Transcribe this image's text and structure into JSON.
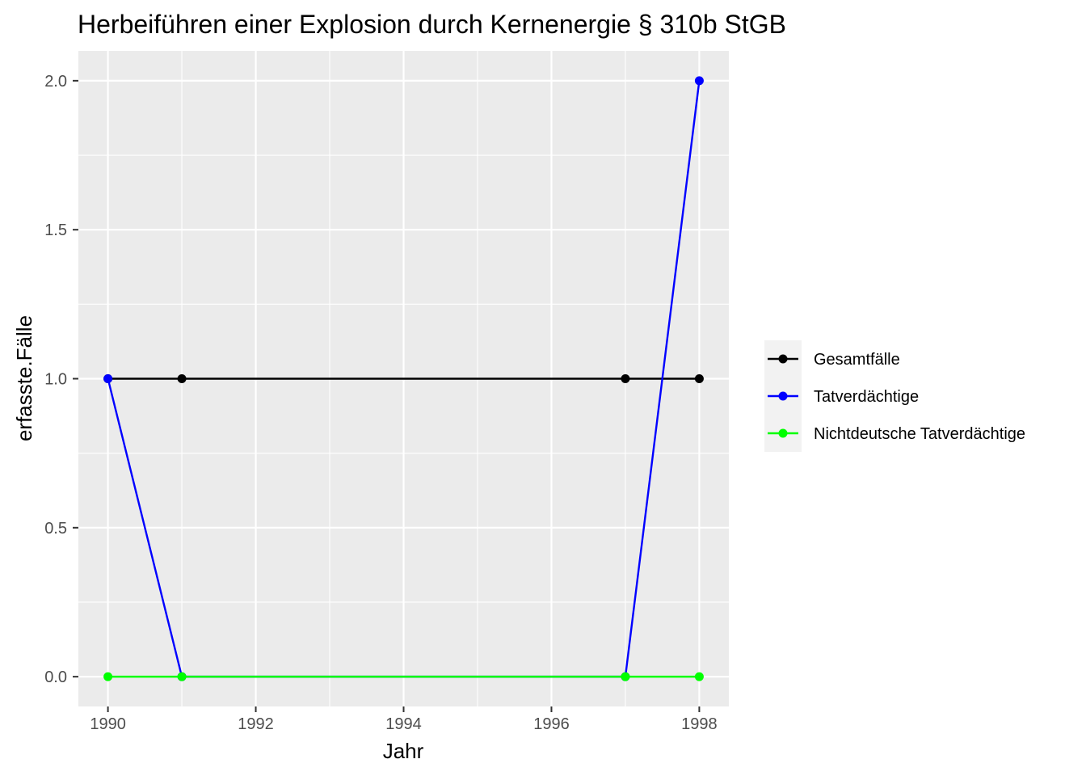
{
  "chart_data": {
    "type": "line",
    "title": "Herbeiführen einer Explosion durch Kernenergie § 310b StGB",
    "xlabel": "Jahr",
    "ylabel": "erfasste.Fälle",
    "x": [
      1990,
      1991,
      1997,
      1998
    ],
    "xlim": [
      1989.6,
      1998.4
    ],
    "ylim": [
      -0.1,
      2.1
    ],
    "x_ticks": [
      "1990",
      "1992",
      "1994",
      "1996",
      "1998"
    ],
    "y_ticks": [
      "0.0",
      "0.5",
      "1.0",
      "1.5",
      "2.0"
    ],
    "grid": true,
    "legend_position": "right",
    "series": [
      {
        "name": "Gesamtfälle",
        "color": "#000000",
        "values": [
          1,
          1,
          1,
          1
        ]
      },
      {
        "name": "Tatverdächtige",
        "color": "#0000ff",
        "values": [
          1,
          0,
          0,
          2
        ]
      },
      {
        "name": "Nichtdeutsche Tatverdächtige",
        "color": "#00ff00",
        "values": [
          0,
          0,
          0,
          0
        ]
      }
    ]
  }
}
